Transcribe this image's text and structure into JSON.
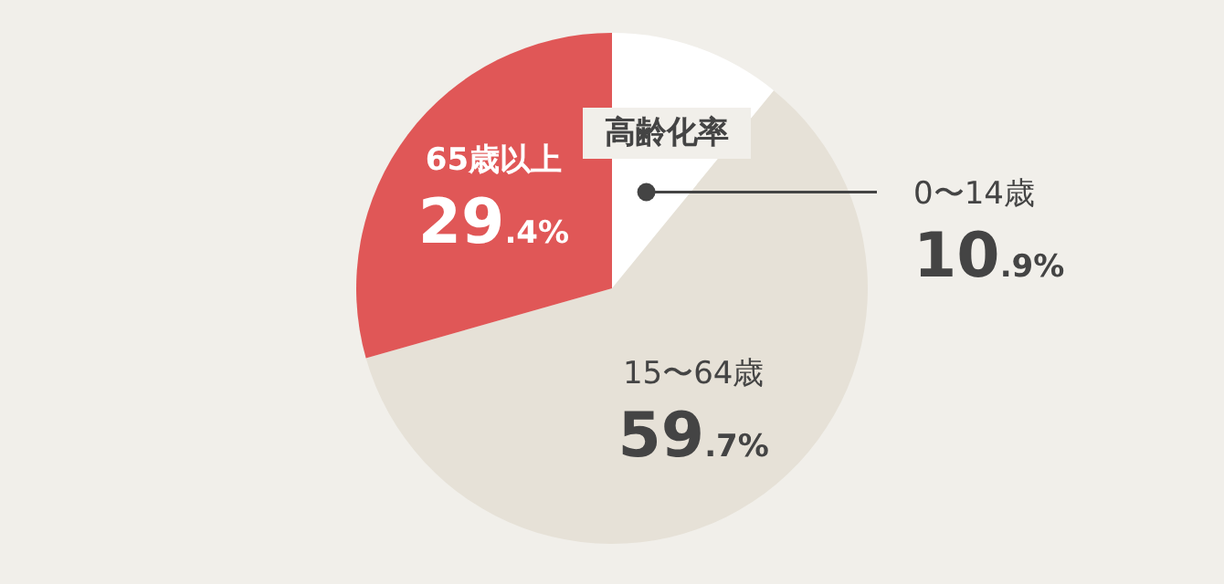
{
  "chart_data": {
    "type": "pie",
    "title": "高齢化率",
    "categories": [
      "0〜14歳",
      "15〜64歳",
      "65歳以上"
    ],
    "values": [
      10.9,
      59.7,
      29.4
    ],
    "colors": [
      "#ffffff",
      "#e6e1d7",
      "#e05757"
    ],
    "value_labels": [
      "10.9%",
      "59.7%",
      "29.4%"
    ]
  }
}
